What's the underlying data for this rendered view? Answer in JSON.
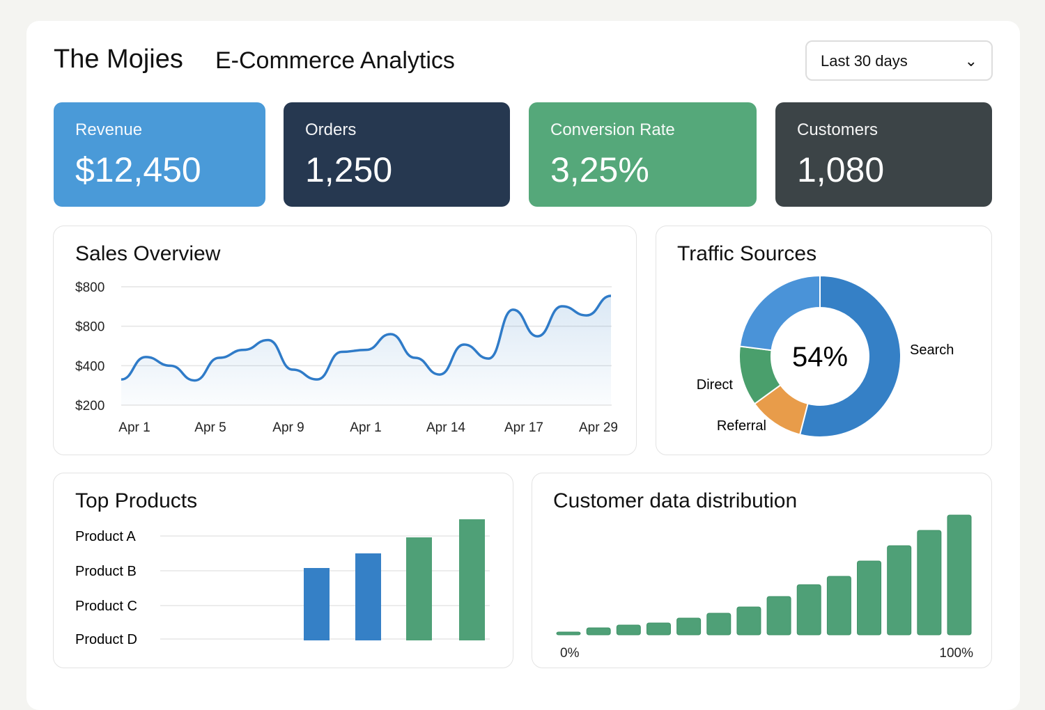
{
  "header": {
    "brand": "The Mojies",
    "title": "E-Commerce Analytics",
    "date_range": "Last 30 days"
  },
  "kpis": [
    {
      "label": "Revenue",
      "value": "$12,450",
      "color": "#4a9ad8"
    },
    {
      "label": "Orders",
      "value": "1,250",
      "color": "#263850"
    },
    {
      "label": "Conversion Rate",
      "value": "3,25%",
      "color": "#55a87a"
    },
    {
      "label": "Customers",
      "value": "1,080",
      "color": "#3c4447"
    }
  ],
  "chart_data": [
    {
      "type": "area",
      "title": "Sales Overview",
      "y_tick_labels": [
        "$800",
        "$800",
        "$400",
        "$200"
      ],
      "ylim": [
        200,
        800
      ],
      "x_tick_labels": [
        "Apr 1",
        "Apr 5",
        "Apr 9",
        "Apr 1",
        "Apr 14",
        "Apr 17",
        "Apr 29"
      ],
      "grid": true,
      "color": "#2f7bc8",
      "values": [
        330,
        444,
        400,
        325,
        440,
        480,
        530,
        380,
        330,
        470,
        480,
        560,
        440,
        355,
        507,
        436,
        684,
        549,
        701,
        655,
        754
      ]
    },
    {
      "type": "pie",
      "title": "Traffic Sources",
      "center_label": "54%",
      "slices": [
        {
          "name": "Search",
          "value": 54,
          "color": "#3580c6"
        },
        {
          "name": "Referral",
          "value": 11,
          "color": "#e89c4a"
        },
        {
          "name": "Direct",
          "value": 12,
          "color": "#4a9f6c"
        },
        {
          "name": "",
          "value": 23,
          "color": "#4a93d8"
        }
      ]
    },
    {
      "type": "bar",
      "title": "Top Products",
      "categories": [
        "Product A",
        "Product B",
        "Product C",
        "Product D"
      ],
      "values": [
        104,
        125,
        148,
        174
      ],
      "colors": [
        "#3580c6",
        "#3580c6",
        "#4fa077",
        "#4fa077"
      ]
    },
    {
      "type": "bar",
      "title": "Customer data distribution",
      "x_tick_labels": [
        "0%",
        "100%"
      ],
      "color": "#4fa077",
      "values": [
        4,
        10,
        14,
        17,
        24,
        31,
        40,
        55,
        72,
        84,
        106,
        128,
        150,
        172
      ]
    }
  ]
}
